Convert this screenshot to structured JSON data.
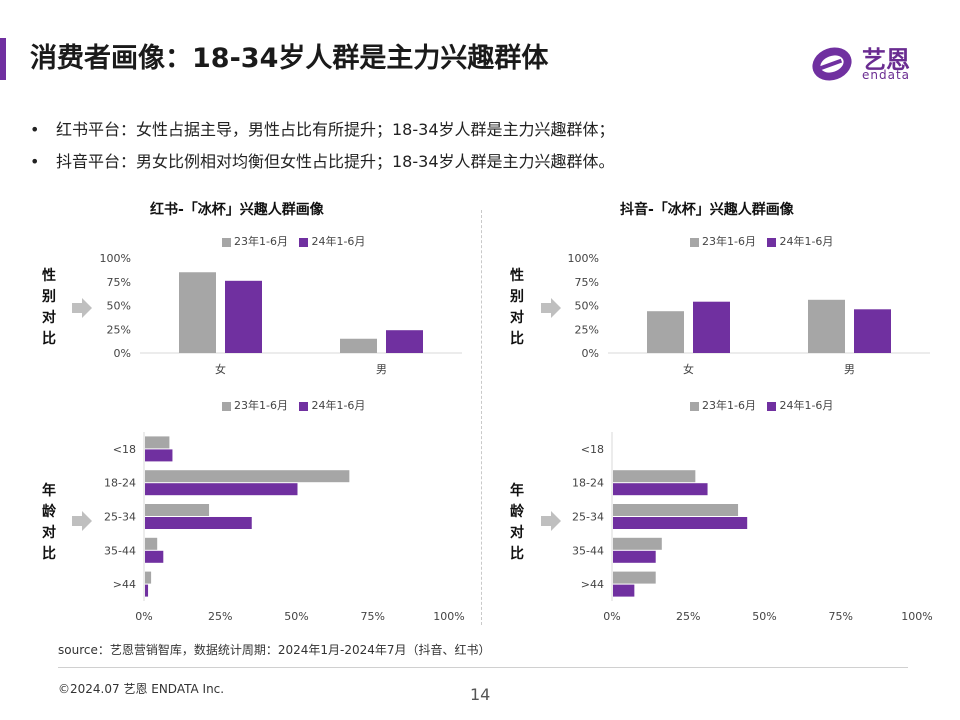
{
  "header": {
    "title": "消费者画像：18-34岁人群是主力兴趣群体",
    "logo_cn": "艺恩",
    "logo_en": "endata"
  },
  "bullets": [
    "红书平台：女性占据主导，男性占比有所提升；18-34岁人群是主力兴趣群体；",
    "抖音平台：男女比例相对均衡但女性占比提升；18-34岁人群是主力兴趣群体。"
  ],
  "labels": {
    "gender": [
      "性",
      "别",
      "对",
      "比"
    ],
    "age": [
      "年",
      "龄",
      "对",
      "比"
    ]
  },
  "colors": {
    "s23": "#a6a6a6",
    "s24": "#7030a0",
    "accent": "#7030a0",
    "arrow": "#bfbfbf"
  },
  "footer": {
    "source": "source：艺恩营销智库，数据统计周期：2024年1月-2024年7月（抖音、红书）",
    "copyright": "©2024.07  艺恩 ENDATA Inc.",
    "page": "14"
  },
  "chart_data": [
    {
      "id": "xhs-gender",
      "type": "bar",
      "title": "红书-「冰杯」兴趣人群画像",
      "categories": [
        "女",
        "男"
      ],
      "series": [
        {
          "name": "23年1-6月",
          "values": [
            0.85,
            0.15
          ]
        },
        {
          "name": "24年1-6月",
          "values": [
            0.76,
            0.24
          ]
        }
      ],
      "ylim": [
        0,
        1
      ],
      "yticks": [
        "0%",
        "25%",
        "50%",
        "75%",
        "100%"
      ]
    },
    {
      "id": "dy-gender",
      "type": "bar",
      "title": "抖音-「冰杯」兴趣人群画像",
      "categories": [
        "女",
        "男"
      ],
      "series": [
        {
          "name": "23年1-6月",
          "values": [
            0.44,
            0.56
          ]
        },
        {
          "name": "24年1-6月",
          "values": [
            0.54,
            0.46
          ]
        }
      ],
      "ylim": [
        0,
        1
      ],
      "yticks": [
        "0%",
        "25%",
        "50%",
        "75%",
        "100%"
      ]
    },
    {
      "id": "xhs-age",
      "type": "bar",
      "orientation": "horizontal",
      "categories": [
        "<18",
        "18-24",
        "25-34",
        "35-44",
        ">44"
      ],
      "series": [
        {
          "name": "23年1-6月",
          "values": [
            0.08,
            0.67,
            0.21,
            0.04,
            0.02
          ]
        },
        {
          "name": "24年1-6月",
          "values": [
            0.09,
            0.5,
            0.35,
            0.06,
            0.01
          ]
        }
      ],
      "xlim": [
        0,
        1
      ],
      "xticks": [
        "0%",
        "25%",
        "50%",
        "75%",
        "100%"
      ]
    },
    {
      "id": "dy-age",
      "type": "bar",
      "orientation": "horizontal",
      "categories": [
        "<18",
        "18-24",
        "25-34",
        "35-44",
        ">44"
      ],
      "series": [
        {
          "name": "23年1-6月",
          "values": [
            0.0,
            0.27,
            0.41,
            0.16,
            0.14
          ]
        },
        {
          "name": "24年1-6月",
          "values": [
            0.0,
            0.31,
            0.44,
            0.14,
            0.07
          ]
        }
      ],
      "xlim": [
        0,
        1
      ],
      "xticks": [
        "0%",
        "25%",
        "50%",
        "75%",
        "100%"
      ]
    }
  ]
}
